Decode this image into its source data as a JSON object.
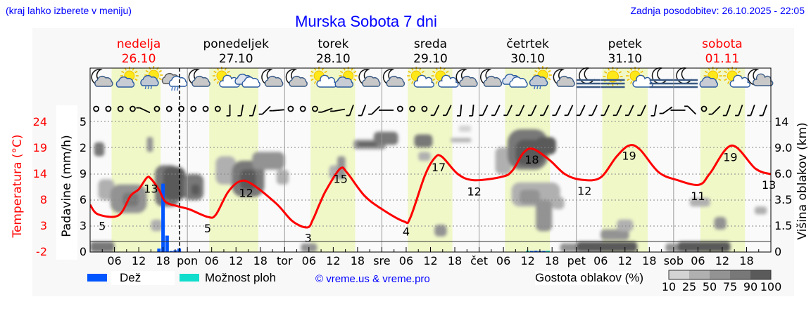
{
  "header": {
    "hint": "(kraj lahko izberete v meniju)",
    "title": "Murska Sobota 7 dni",
    "updated": "Zadnja posodobitev: 26.10.2025 - 22:05"
  },
  "days": [
    {
      "name": "nedelja",
      "date": "26.10",
      "weekend": true,
      "daylight": [
        5.3,
        17.4
      ]
    },
    {
      "name": "ponedeljek",
      "date": "27.10",
      "weekend": false,
      "daylight": [
        5.4,
        17.5
      ]
    },
    {
      "name": "torek",
      "date": "28.10",
      "weekend": false,
      "daylight": [
        6.4,
        17.4
      ]
    },
    {
      "name": "sreda",
      "date": "29.10",
      "weekend": false,
      "daylight": [
        6.4,
        17.4
      ]
    },
    {
      "name": "četrtek",
      "date": "30.10",
      "weekend": false,
      "daylight": [
        6.4,
        17.5
      ]
    },
    {
      "name": "petek",
      "date": "31.10",
      "weekend": false,
      "daylight": [
        6.4,
        17.6
      ]
    },
    {
      "name": "sobota",
      "date": "01.11",
      "weekend": true,
      "daylight": [
        6.6,
        17.6
      ]
    }
  ],
  "weather_icons": [
    "moon-cloud",
    "sun-cloud",
    "sun-rain-cloud",
    "cloud-rain",
    "moon-cloud",
    "sun-small-cloud",
    "cloud",
    "moon-cloud",
    "moon-cloud",
    "sun-small-cloud",
    "sun-cloud",
    "moon-cloud",
    "moon-cloud",
    "sun-small-cloud",
    "sun-small-cloud",
    "moon-cloud",
    "moon-cloud",
    "cloud",
    "sun-rain-cloud",
    "moon-cloud",
    "moon-fog",
    "sun-fog",
    "sun-small-cloud",
    "moon-fog",
    "moon-fog",
    "sun-cloud",
    "sun-small-cloud",
    "moon-small-cloud"
  ],
  "wind": [
    "c",
    "c",
    "c",
    "c",
    -25,
    "c",
    "c",
    "c",
    "c",
    "c",
    "c",
    90,
    80,
    75,
    45,
    5,
    "c",
    "c",
    "c",
    20,
    10,
    70,
    70,
    45,
    0,
    "c",
    "c",
    "c",
    65,
    65,
    85,
    85,
    65,
    65,
    65,
    65,
    65,
    65,
    65,
    65,
    65,
    65,
    65,
    65,
    65,
    65,
    80,
    35,
    0,
    -45,
    "c",
    45,
    70,
    70,
    70,
    70
  ],
  "legend": {
    "rain": "Dež",
    "showers": "Možnost ploh",
    "copyright": "© vreme.us & vreme.pro",
    "cloud_density": "Gostota oblakov (%)",
    "density_ticks": [
      "10",
      "25",
      "50",
      "75",
      "90",
      "100"
    ]
  },
  "chart_data": {
    "type": "meteogram",
    "title": "Murska Sobota 7 dni",
    "x_unit": "hours from 26.10 00:00",
    "xlim": [
      0,
      168
    ],
    "now_hour": 22.1,
    "x_tick_labels": [
      "06",
      "12",
      "18",
      "pon",
      "06",
      "12",
      "18",
      "tor",
      "06",
      "12",
      "18",
      "sre",
      "06",
      "12",
      "18",
      "čet",
      "06",
      "12",
      "18",
      "pet",
      "06",
      "12",
      "18",
      "sob",
      "06",
      "12",
      "18"
    ],
    "temperature": {
      "ylabel": "Temperatura (°C)",
      "ticks": [
        "24",
        "19",
        "14",
        "8",
        "3",
        "-2"
      ],
      "ylim": [
        -2,
        24
      ],
      "points": [
        [
          0,
          7.4
        ],
        [
          2,
          5.5
        ],
        [
          7,
          5.3
        ],
        [
          10,
          9.2
        ],
        [
          12,
          10.5
        ],
        [
          14,
          12.8
        ],
        [
          15,
          12.6
        ],
        [
          17,
          10.4
        ],
        [
          18.6,
          8
        ],
        [
          21.7,
          7.1
        ],
        [
          24.5,
          6.5
        ],
        [
          29,
          5
        ],
        [
          31,
          5.4
        ],
        [
          34,
          9.9
        ],
        [
          37,
          12.1
        ],
        [
          40,
          11.5
        ],
        [
          46,
          7.6
        ],
        [
          50,
          4.1
        ],
        [
          53.6,
          2.9
        ],
        [
          55,
          4.5
        ],
        [
          56.6,
          7.5
        ],
        [
          58.3,
          10.4
        ],
        [
          61.7,
          14.6
        ],
        [
          63.5,
          13.7
        ],
        [
          67.6,
          9.3
        ],
        [
          71.7,
          6.7
        ],
        [
          77.4,
          4.1
        ],
        [
          79,
          4.8
        ],
        [
          82.6,
          13.2
        ],
        [
          85,
          16.7
        ],
        [
          86.8,
          17
        ],
        [
          90.8,
          13.5
        ],
        [
          94.8,
          12.3
        ],
        [
          101.7,
          13
        ],
        [
          104.2,
          14.2
        ],
        [
          107,
          17.8
        ],
        [
          109.4,
          18.5
        ],
        [
          113.4,
          16.3
        ],
        [
          117.2,
          13.5
        ],
        [
          121.2,
          12.4
        ],
        [
          125.9,
          12.8
        ],
        [
          129.9,
          17
        ],
        [
          133,
          19.2
        ],
        [
          135.7,
          18.4
        ],
        [
          140.3,
          13.9
        ],
        [
          145,
          12.3
        ],
        [
          150.3,
          11.4
        ],
        [
          153,
          13.7
        ],
        [
          158.3,
          19.2
        ],
        [
          164.2,
          14.6
        ],
        [
          168,
          13.5
        ]
      ],
      "extremes": [
        {
          "h": 3,
          "label": "5",
          "kind": "min"
        },
        {
          "h": 15,
          "label": "13",
          "kind": "max"
        },
        {
          "h": 29,
          "label": "5",
          "kind": "min"
        },
        {
          "h": 38.5,
          "label": "12",
          "kind": "max"
        },
        {
          "h": 53.8,
          "label": "3",
          "kind": "min"
        },
        {
          "h": 61.8,
          "label": "15",
          "kind": "max"
        },
        {
          "h": 78,
          "label": "4",
          "kind": "min"
        },
        {
          "h": 86,
          "label": "17",
          "kind": "max"
        },
        {
          "h": 94.8,
          "label": "12",
          "kind": "min"
        },
        {
          "h": 109,
          "label": "18",
          "kind": "max"
        },
        {
          "h": 122,
          "label": "12",
          "kind": "min"
        },
        {
          "h": 133,
          "label": "19",
          "kind": "max"
        },
        {
          "h": 150,
          "label": "11",
          "kind": "min"
        },
        {
          "h": 158,
          "label": "19",
          "kind": "max"
        },
        {
          "h": 167.5,
          "label": "13",
          "kind": "end"
        }
      ]
    },
    "precipitation": {
      "ylabel": "Padavine (mm/h)",
      "ticks": [
        "5",
        "2",
        "9",
        "6",
        "3",
        "0"
      ],
      "rain": [
        [
          17,
          0.4
        ],
        [
          18,
          7.9
        ],
        [
          19,
          1.9
        ],
        [
          20,
          0.1
        ],
        [
          21,
          0.2
        ],
        [
          22,
          0.4
        ],
        [
          109,
          0.1
        ],
        [
          110,
          0.15
        ],
        [
          111,
          0.1
        ],
        [
          112,
          0.1
        ]
      ],
      "showers": [
        [
          108,
          0.05
        ],
        [
          113,
          0.05
        ]
      ]
    },
    "cloud_height": {
      "ylabel": "Višina oblakov (km)",
      "ticks": [
        "14",
        "9.0",
        "6.0",
        "3.5",
        "1.5",
        "0"
      ],
      "density_levels": [
        10,
        25,
        50,
        75,
        90,
        100
      ],
      "blobs": [
        {
          "h": [
            1,
            3.5
          ],
          "km": [
            8,
            10
          ],
          "d": 75
        },
        {
          "h": [
            2,
            6
          ],
          "km": [
            3.5,
            5.5
          ],
          "d": 25
        },
        {
          "h": [
            5,
            14
          ],
          "km": [
            2.5,
            5
          ],
          "d": 50
        },
        {
          "h": [
            8,
            12
          ],
          "km": [
            3,
            4.2
          ],
          "d": 75
        },
        {
          "h": [
            14,
            15.5
          ],
          "km": [
            8.5,
            11
          ],
          "d": 50
        },
        {
          "h": [
            15,
            18
          ],
          "km": [
            1.2,
            2
          ],
          "d": 25
        },
        {
          "h": [
            16,
            22
          ],
          "km": [
            3,
            7
          ],
          "d": 75
        },
        {
          "h": [
            18,
            23.5
          ],
          "km": [
            3.5,
            6.8
          ],
          "d": 90
        },
        {
          "h": [
            23,
            28
          ],
          "km": [
            3.5,
            6
          ],
          "d": 75
        },
        {
          "h": [
            25,
            27
          ],
          "km": [
            4,
            5
          ],
          "d": 90
        },
        {
          "h": [
            31,
            36
          ],
          "km": [
            5,
            8
          ],
          "d": 25
        },
        {
          "h": [
            35,
            43
          ],
          "km": [
            3.8,
            7.5
          ],
          "d": 75
        },
        {
          "h": [
            37,
            41
          ],
          "km": [
            4.5,
            6.5
          ],
          "d": 90
        },
        {
          "h": [
            40,
            48
          ],
          "km": [
            6.5,
            8.5
          ],
          "d": 50
        },
        {
          "h": [
            46,
            49
          ],
          "km": [
            5,
            6.5
          ],
          "d": 25
        },
        {
          "h": [
            59,
            62
          ],
          "km": [
            5.5,
            7
          ],
          "d": 25
        },
        {
          "h": [
            61,
            63
          ],
          "km": [
            5.5,
            8
          ],
          "d": 50
        },
        {
          "h": [
            65,
            73
          ],
          "km": [
            8.8,
            10.5
          ],
          "d": 50
        },
        {
          "h": [
            66,
            71
          ],
          "km": [
            9.2,
            10
          ],
          "d": 90
        },
        {
          "h": [
            70,
            76
          ],
          "km": [
            9.5,
            12
          ],
          "d": 75
        },
        {
          "h": [
            80,
            84.5
          ],
          "km": [
            9,
            11.5
          ],
          "d": 75
        },
        {
          "h": [
            81,
            84
          ],
          "km": [
            7.5,
            8.5
          ],
          "d": 25
        },
        {
          "h": [
            85,
            88
          ],
          "km": [
            0.9,
            1.6
          ],
          "d": 50
        },
        {
          "h": [
            89,
            94
          ],
          "km": [
            10,
            10.8
          ],
          "d": 25
        },
        {
          "h": [
            91,
            94
          ],
          "km": [
            12,
            13.2
          ],
          "d": 10
        },
        {
          "h": [
            100,
            104
          ],
          "km": [
            6,
            9
          ],
          "d": 25
        },
        {
          "h": [
            103,
            113
          ],
          "km": [
            6.5,
            12.5
          ],
          "d": 75
        },
        {
          "h": [
            105,
            112
          ],
          "km": [
            7,
            10.5
          ],
          "d": 90
        },
        {
          "h": [
            110,
            115
          ],
          "km": [
            8.2,
            11
          ],
          "d": 90
        },
        {
          "h": [
            104,
            116
          ],
          "km": [
            3,
            5.2
          ],
          "d": 25
        },
        {
          "h": [
            106,
            111
          ],
          "km": [
            3.2,
            4.5
          ],
          "d": 50
        },
        {
          "h": [
            110,
            114
          ],
          "km": [
            1.2,
            3.5
          ],
          "d": 50
        },
        {
          "h": [
            114,
            117
          ],
          "km": [
            2.8,
            3.8
          ],
          "d": 25
        },
        {
          "h": [
            126,
            133
          ],
          "km": [
            0.7,
            1.3
          ],
          "d": 50
        },
        {
          "h": [
            130,
            134
          ],
          "km": [
            1.2,
            2
          ],
          "d": 25
        },
        {
          "h": [
            148,
            153
          ],
          "km": [
            3,
            3.7
          ],
          "d": 25
        },
        {
          "h": [
            154,
            157
          ],
          "km": [
            1.3,
            2.2
          ],
          "d": 50
        },
        {
          "h": [
            164,
            167
          ],
          "km": [
            2.4,
            3
          ],
          "d": 25
        },
        {
          "h": [
            0,
            6
          ],
          "km": [
            0,
            0.6
          ],
          "d": 75
        },
        {
          "h": [
            52,
            56
          ],
          "km": [
            0,
            0.5
          ],
          "d": 50
        },
        {
          "h": [
            116,
            121
          ],
          "km": [
            0,
            0.5
          ],
          "d": 50
        },
        {
          "h": [
            120,
            135
          ],
          "km": [
            0,
            0.6
          ],
          "d": 90
        },
        {
          "h": [
            142,
            148
          ],
          "km": [
            0,
            0.5
          ],
          "d": 50
        },
        {
          "h": [
            145,
            158
          ],
          "km": [
            0,
            0.6
          ],
          "d": 90
        }
      ]
    }
  },
  "colors": {
    "temperature": "#ff0000",
    "rain": "#0055ff",
    "showers": "#11ddcc",
    "daylight": "#f0f8c8",
    "density": [
      "#d3d3d3",
      "#b0b0b0",
      "#939393",
      "#787878",
      "#5a5a5a"
    ]
  }
}
